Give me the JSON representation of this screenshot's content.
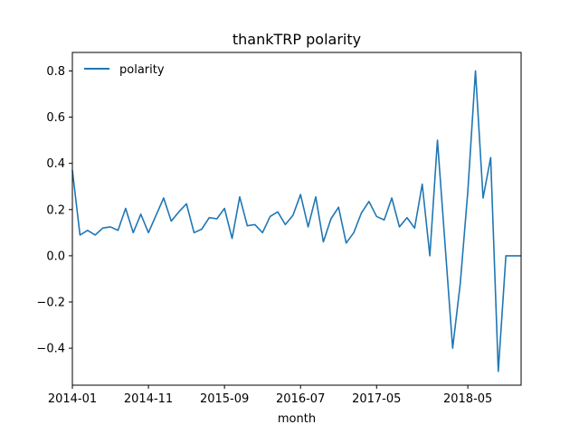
{
  "chart_data": {
    "type": "line",
    "title": "thankTRP polarity",
    "xlabel": "month",
    "ylabel": "",
    "x_range": [
      "2014-01",
      "2018-12"
    ],
    "ylim": [
      -0.56,
      0.88
    ],
    "x_ticks": [
      "2014-01",
      "2014-11",
      "2015-09",
      "2016-07",
      "2017-05",
      "2018-05"
    ],
    "y_ticks": [
      "−0.4",
      "−0.2",
      "0.0",
      "0.2",
      "0.4",
      "0.6",
      "0.8"
    ],
    "legend": {
      "position": "top-left"
    },
    "grid": false,
    "series": [
      {
        "name": "polarity",
        "color": "#1f77b4",
        "x": [
          "2014-01",
          "2014-02",
          "2014-03",
          "2014-04",
          "2014-05",
          "2014-06",
          "2014-07",
          "2014-08",
          "2014-09",
          "2014-10",
          "2014-11",
          "2014-12",
          "2015-01",
          "2015-02",
          "2015-03",
          "2015-04",
          "2015-05",
          "2015-06",
          "2015-07",
          "2015-08",
          "2015-09",
          "2015-10",
          "2015-11",
          "2015-12",
          "2016-01",
          "2016-02",
          "2016-03",
          "2016-04",
          "2016-05",
          "2016-06",
          "2016-07",
          "2016-08",
          "2016-09",
          "2016-10",
          "2016-11",
          "2016-12",
          "2017-01",
          "2017-02",
          "2017-03",
          "2017-04",
          "2017-05",
          "2017-06",
          "2017-07",
          "2017-08",
          "2017-09",
          "2017-10",
          "2017-11",
          "2017-12",
          "2018-01",
          "2018-02",
          "2018-03",
          "2018-04",
          "2018-05",
          "2018-06",
          "2018-07",
          "2018-08",
          "2018-09",
          "2018-10",
          "2018-11",
          "2018-12"
        ],
        "values": [
          0.37,
          0.09,
          0.11,
          0.09,
          0.12,
          0.125,
          0.11,
          0.205,
          0.1,
          0.18,
          0.1,
          0.175,
          0.25,
          0.15,
          0.19,
          0.225,
          0.1,
          0.115,
          0.165,
          0.16,
          0.205,
          0.075,
          0.255,
          0.13,
          0.135,
          0.1,
          0.17,
          0.19,
          0.135,
          0.175,
          0.265,
          0.125,
          0.255,
          0.06,
          0.16,
          0.21,
          0.055,
          0.1,
          0.185,
          0.235,
          0.17,
          0.155,
          0.25,
          0.125,
          0.165,
          0.12,
          0.31,
          0.0,
          0.5,
          0.05,
          -0.4,
          -0.12,
          0.28,
          0.8,
          0.25,
          0.425,
          -0.5,
          0.0,
          0.0,
          0.0
        ]
      }
    ]
  }
}
